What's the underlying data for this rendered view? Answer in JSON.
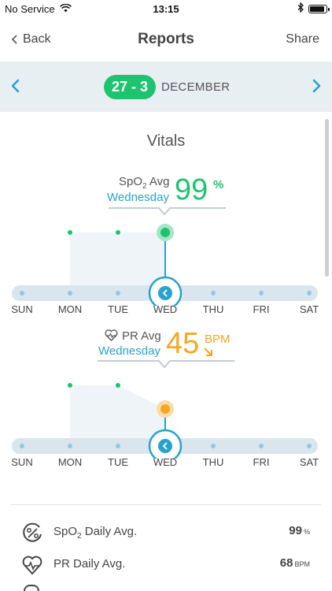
{
  "status_bar": {
    "carrier": "No Service",
    "time": "13:15"
  },
  "nav": {
    "back_label": "Back",
    "title": "Reports",
    "share_label": "Share"
  },
  "date_bar": {
    "range": "27 - 3",
    "month": "DECEMBER"
  },
  "section_title": "Vitals",
  "colors": {
    "green": "#1fc36f",
    "orange": "#f5a623",
    "blue": "#2aa2cc",
    "track": "#dae6ee",
    "area": "#eef4f8"
  },
  "spo2_chart": {
    "label": "SpO",
    "label_sub": "2",
    "label_suffix": " Avg",
    "day": "Wednesday",
    "value": "99",
    "unit": "%",
    "days": [
      "SUN",
      "MON",
      "TUE",
      "WED",
      "THU",
      "FRI",
      "SAT"
    ],
    "selected_index": 3
  },
  "pr_chart": {
    "label": "PR Avg",
    "day": "Wednesday",
    "value": "45",
    "unit": "BPM",
    "days": [
      "SUN",
      "MON",
      "TUE",
      "WED",
      "THU",
      "FRI",
      "SAT"
    ],
    "selected_index": 3
  },
  "stats": [
    {
      "label": "SpO",
      "label_sub": "2",
      "label_suffix": " Daily Avg.",
      "value": "99",
      "unit": "%"
    },
    {
      "label": "PR Daily Avg.",
      "value": "68",
      "unit": "BPM"
    }
  ]
}
